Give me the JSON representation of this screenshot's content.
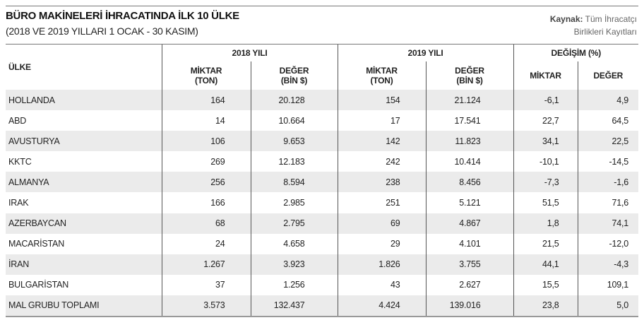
{
  "title": "BÜRO MAKİNELERİ İHRACATINDA İLK 10 ÜLKE",
  "subtitle": "(2018 VE 2019 YILLARI 1 OCAK - 30 KASIM)",
  "source": {
    "label": "Kaynak:",
    "line1": "Tüm İhracatçı",
    "line2": "Birlikleri Kayıtları"
  },
  "table": {
    "country_header": "ÜLKE",
    "groups": [
      "2018 YILI",
      "2019 YILI",
      "DEĞİŞİM (%)"
    ],
    "sub": {
      "miktar_ton": [
        "MİKTAR",
        "(TON)"
      ],
      "deger_bin": [
        "DEĞER",
        "(BİN $)"
      ],
      "miktar": "MİKTAR",
      "deger": "DEĞER"
    },
    "rows": [
      [
        "HOLLANDA",
        "164",
        "20.128",
        "154",
        "21.124",
        "-6,1",
        "4,9"
      ],
      [
        "ABD",
        "14",
        "10.664",
        "17",
        "17.541",
        "22,7",
        "64,5"
      ],
      [
        "AVUSTURYA",
        "106",
        "9.653",
        "142",
        "11.823",
        "34,1",
        "22,5"
      ],
      [
        "KKTC",
        "269",
        "12.183",
        "242",
        "10.414",
        "-10,1",
        "-14,5"
      ],
      [
        "ALMANYA",
        "256",
        "8.594",
        "238",
        "8.456",
        "-7,3",
        "-1,6"
      ],
      [
        "IRAK",
        "166",
        "2.985",
        "251",
        "5.121",
        "51,5",
        "71,6"
      ],
      [
        "AZERBAYCAN",
        "68",
        "2.795",
        "69",
        "4.867",
        "1,8",
        "74,1"
      ],
      [
        "MACARİSTAN",
        "24",
        "4.658",
        "29",
        "4.101",
        "21,5",
        "-12,0"
      ],
      [
        "İRAN",
        "1.267",
        "3.923",
        "1.826",
        "3.755",
        "44,1",
        "-4,3"
      ],
      [
        "BULGARİSTAN",
        "37",
        "1.256",
        "43",
        "2.627",
        "15,5",
        "109,1"
      ],
      [
        "MAL GRUBU TOPLAMI",
        "3.573",
        "132.437",
        "4.424",
        "139.016",
        "23,8",
        "5,0"
      ]
    ]
  }
}
